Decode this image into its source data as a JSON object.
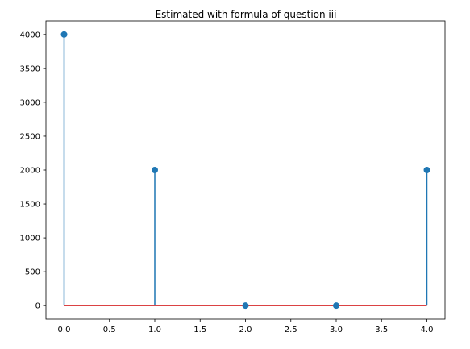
{
  "chart_data": {
    "type": "stem",
    "title": "Estimated with formula of question iii",
    "xlabel": "",
    "ylabel": "",
    "x": [
      0,
      1,
      2,
      3,
      4
    ],
    "y": [
      4000,
      2000,
      0,
      0,
      2000
    ],
    "xlim": [
      -0.2,
      4.2
    ],
    "ylim": [
      -200,
      4200
    ],
    "xticks": [
      "0.0",
      "0.5",
      "1.0",
      "1.5",
      "2.0",
      "2.5",
      "3.0",
      "3.5",
      "4.0"
    ],
    "xtick_values": [
      0,
      0.5,
      1,
      1.5,
      2,
      2.5,
      3,
      3.5,
      4
    ],
    "yticks": [
      "0",
      "500",
      "1000",
      "1500",
      "2000",
      "2500",
      "3000",
      "3500",
      "4000"
    ],
    "ytick_values": [
      0,
      500,
      1000,
      1500,
      2000,
      2500,
      3000,
      3500,
      4000
    ],
    "grid": false,
    "legend": "none",
    "colors": {
      "stem": "#1f77b4",
      "marker": "#1f77b4",
      "baseline": "#d62728"
    }
  }
}
